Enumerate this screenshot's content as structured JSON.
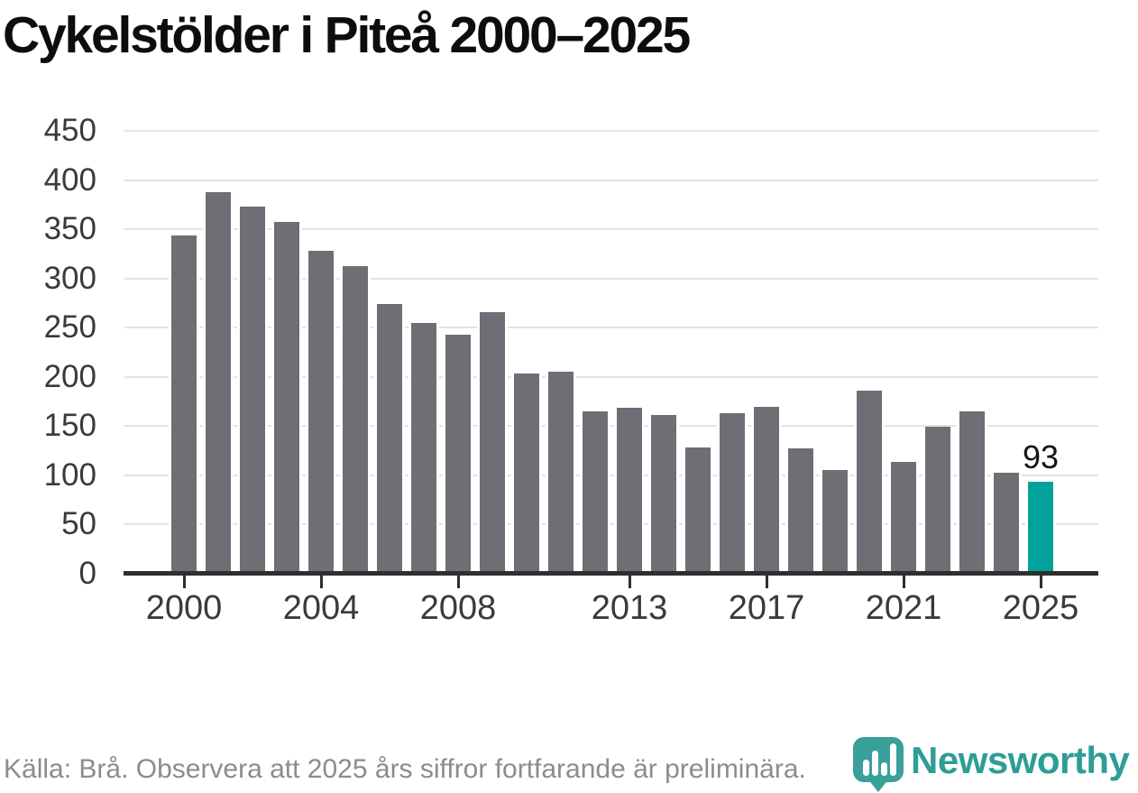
{
  "title": "Cykelstölder i Piteå 2000–2025",
  "chart_data": {
    "type": "bar",
    "title": "Cykelstölder i Piteå 2000–2025",
    "categories": [
      "2000",
      "2001",
      "2002",
      "2003",
      "2004",
      "2005",
      "2006",
      "2007",
      "2008",
      "2009",
      "2010",
      "2011",
      "2012",
      "2013",
      "2014",
      "2015",
      "2016",
      "2017",
      "2018",
      "2019",
      "2020",
      "2021",
      "2022",
      "2023",
      "2024",
      "2025"
    ],
    "values": [
      344,
      388,
      373,
      357,
      328,
      312,
      274,
      255,
      243,
      266,
      203,
      205,
      165,
      168,
      161,
      128,
      163,
      169,
      127,
      105,
      186,
      113,
      149,
      165,
      102,
      93
    ],
    "highlighted_category": "2025",
    "highlighted_value": 93,
    "value_label": "93",
    "xlabel": "",
    "ylabel": "",
    "ylim": [
      0,
      450
    ],
    "yticks": [
      0,
      50,
      100,
      150,
      200,
      250,
      300,
      350,
      400,
      450
    ],
    "xtick_labels": [
      "2000",
      "2004",
      "2008",
      "2013",
      "2017",
      "2021",
      "2025"
    ],
    "grid": "horizontal",
    "legend": "none",
    "bar_color": "#6f6e74",
    "highlight_color": "#00a29b"
  },
  "footer": {
    "source_note": "Källa: Brå. Observera att 2025 års siffror fortfarande är preliminära."
  },
  "branding": {
    "wordmark": "Newsworthy",
    "logo_icon": "newsworthy-pin-bar-chart-icon",
    "brand_color": "#2d9d95"
  },
  "colors": {
    "bar": "#6f6e74",
    "highlight": "#00a29b",
    "gridline": "#e3e3e3",
    "axis": "#2f2f2f",
    "axis_label": "#3a3a3e",
    "title": "#0d0d0d",
    "footer_text": "#8b8c91",
    "logo_teal": "#3aa09a"
  }
}
